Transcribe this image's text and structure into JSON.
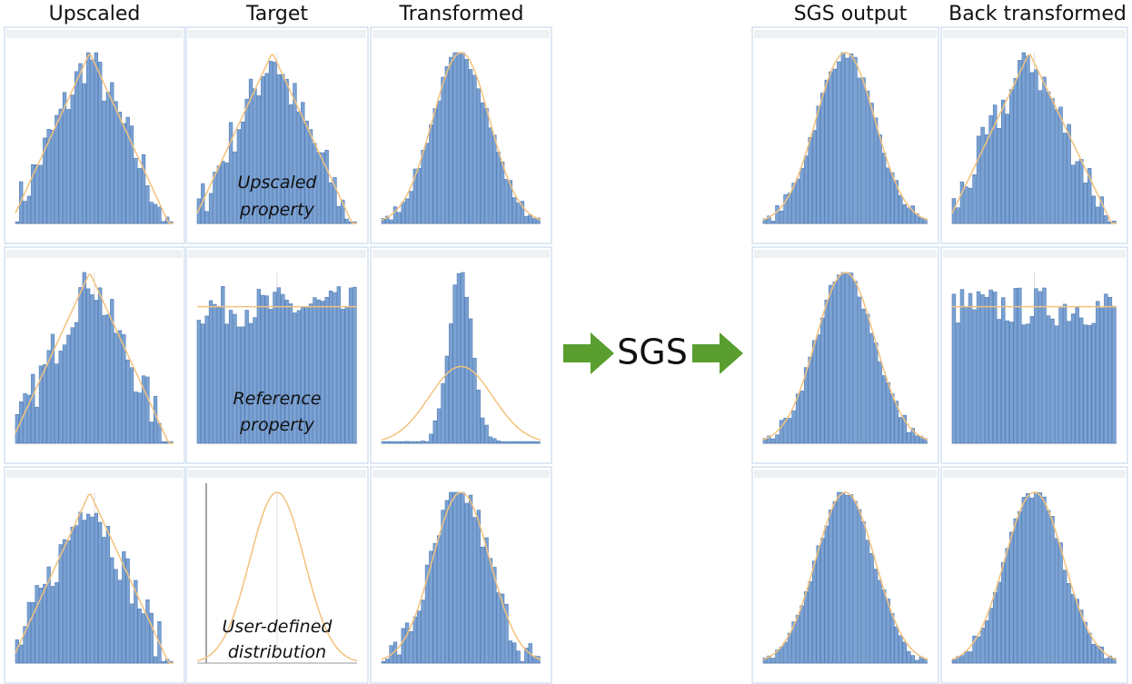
{
  "headers": [
    "Upscaled",
    "Target",
    "Transformed",
    "SGS output",
    "Back transformed"
  ],
  "annotations": [
    [
      "Upscaled",
      "property"
    ],
    [
      "Reference",
      "property"
    ],
    [
      "User-defined",
      "distribution"
    ]
  ],
  "center_label": "SGS"
}
